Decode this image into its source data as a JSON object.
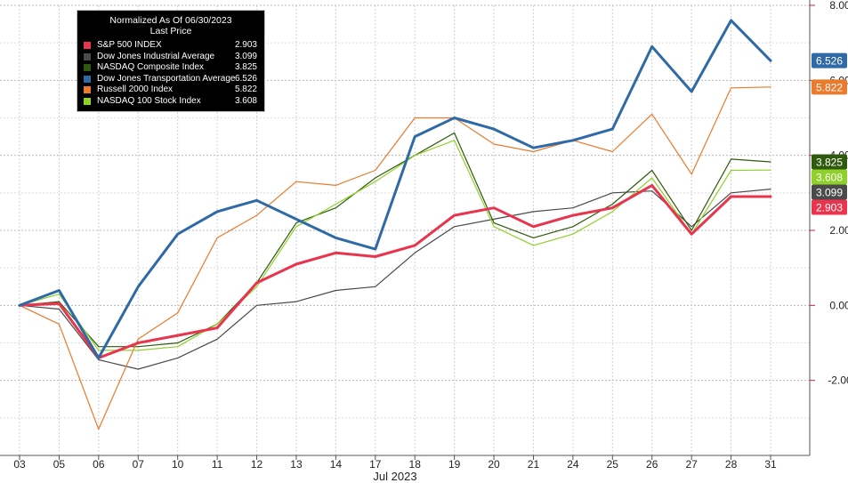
{
  "legend": {
    "title": "Normalized As Of 06/30/2023",
    "subtitle": "Last Price",
    "entries": [
      {
        "name": "S&P 500 INDEX",
        "value": "2.903",
        "color": "#e8354d"
      },
      {
        "name": "Dow Jones Industrial Average",
        "value": "3.099",
        "color": "#4a4a4a"
      },
      {
        "name": "NASDAQ Composite Index",
        "value": "3.825",
        "color": "#2f5a0e"
      },
      {
        "name": "Dow Jones Transportation Average",
        "value": "6.526",
        "color": "#2f6aa6"
      },
      {
        "name": "Russell 2000 Index",
        "value": "5.822",
        "color": "#ea7a2c"
      },
      {
        "name": "NASDAQ 100 Stock Index",
        "value": "3.608",
        "color": "#8fd12b"
      }
    ]
  },
  "chart_data": {
    "type": "line",
    "title": "Normalized As Of 06/30/2023",
    "xlabel": "Jul 2023",
    "ylabel": "",
    "y_axis_position": "right",
    "ylim": [
      -4.0,
      8.0
    ],
    "yticks": [
      "8.00",
      "6.00",
      "4.00",
      "2.00",
      "0.00",
      "-2.00"
    ],
    "yticks_values": [
      8,
      6,
      4,
      2,
      0,
      -2
    ],
    "grid": true,
    "legend_position": "top-left",
    "categories": [
      "03",
      "05",
      "06",
      "07",
      "10",
      "11",
      "12",
      "13",
      "14",
      "17",
      "18",
      "19",
      "20",
      "21",
      "24",
      "25",
      "26",
      "27",
      "28",
      "31"
    ],
    "series": [
      {
        "name": "S&P 500 INDEX",
        "color": "#e8354d",
        "width": 3,
        "last": "2.903",
        "values": [
          0.0,
          0.05,
          -1.4,
          -1.0,
          -0.8,
          -0.6,
          0.6,
          1.1,
          1.4,
          1.3,
          1.6,
          2.4,
          2.6,
          2.1,
          2.4,
          2.6,
          3.2,
          1.9,
          2.9,
          2.9
        ]
      },
      {
        "name": "Dow Jones Industrial Average",
        "color": "#4a4a4a",
        "width": 1.2,
        "last": "3.099",
        "values": [
          0.0,
          -0.1,
          -1.45,
          -1.7,
          -1.4,
          -0.9,
          0.0,
          0.1,
          0.4,
          0.5,
          1.4,
          2.1,
          2.3,
          2.5,
          2.6,
          3.0,
          3.05,
          2.1,
          3.0,
          3.1
        ]
      },
      {
        "name": "NASDAQ Composite Index",
        "color": "#2f5a0e",
        "width": 1.2,
        "last": "3.825",
        "values": [
          0.0,
          0.1,
          -1.1,
          -1.1,
          -1.0,
          -0.5,
          0.6,
          2.2,
          2.6,
          3.4,
          4.0,
          4.6,
          2.2,
          1.8,
          2.1,
          2.7,
          3.6,
          2.0,
          3.9,
          3.825
        ]
      },
      {
        "name": "Dow Jones Transportation Average",
        "color": "#2f6aa6",
        "width": 3,
        "last": "6.526",
        "values": [
          0.0,
          0.4,
          -1.4,
          0.5,
          1.9,
          2.5,
          2.8,
          2.3,
          1.8,
          1.5,
          4.5,
          5.0,
          4.7,
          4.2,
          4.4,
          4.7,
          6.9,
          5.7,
          7.6,
          6.526
        ]
      },
      {
        "name": "Russell 2000 Index",
        "color": "#ea7a2c",
        "width": 1.2,
        "last": "5.822",
        "values": [
          0.0,
          -0.5,
          -3.3,
          -0.9,
          -0.2,
          1.8,
          2.4,
          3.3,
          3.2,
          3.6,
          5.0,
          5.0,
          4.3,
          4.1,
          4.4,
          4.1,
          5.1,
          3.5,
          5.8,
          5.822
        ]
      },
      {
        "name": "NASDAQ 100 Stock Index",
        "color": "#8fd12b",
        "width": 1.2,
        "last": "3.608",
        "values": [
          0.0,
          0.3,
          -1.2,
          -1.2,
          -1.1,
          -0.5,
          0.5,
          2.1,
          2.7,
          3.3,
          4.0,
          4.4,
          2.1,
          1.6,
          1.9,
          2.5,
          3.4,
          1.9,
          3.6,
          3.608
        ]
      }
    ]
  }
}
